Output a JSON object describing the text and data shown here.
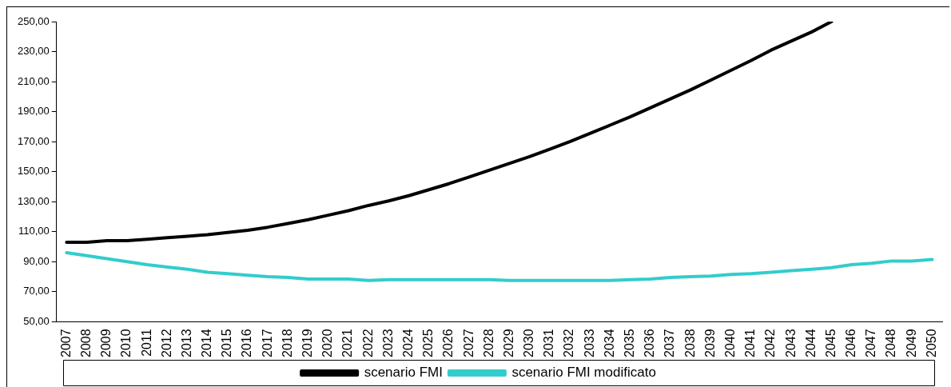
{
  "chart_data": {
    "type": "line",
    "categories": [
      "2007",
      "2008",
      "2009",
      "2010",
      "2011",
      "2012",
      "2013",
      "2014",
      "2015",
      "2016",
      "2017",
      "2018",
      "2019",
      "2020",
      "2021",
      "2022",
      "2023",
      "2024",
      "2025",
      "2026",
      "2027",
      "2028",
      "2029",
      "2030",
      "2031",
      "2032",
      "2033",
      "2034",
      "2035",
      "2036",
      "2037",
      "2038",
      "2039",
      "2040",
      "2041",
      "2042",
      "2043",
      "2044",
      "2045",
      "2046",
      "2047",
      "2048",
      "2049",
      "2050"
    ],
    "series": [
      {
        "name": "scenario FMI",
        "color": "#000000",
        "values": [
          103,
          103,
          104,
          104,
          105,
          106,
          107,
          108,
          109.5,
          111,
          113,
          115.5,
          118,
          121,
          124,
          127.5,
          130.5,
          134,
          138,
          142,
          146.5,
          151,
          155.5,
          160,
          165,
          170,
          175.5,
          181,
          186.5,
          192.5,
          198.5,
          204.5,
          211,
          217.5,
          224,
          231,
          237,
          243,
          250,
          null,
          null,
          null,
          null,
          null
        ]
      },
      {
        "name": "scenario FMI modificato",
        "color": "#33cccc",
        "values": [
          96,
          94,
          92,
          90,
          88,
          86.5,
          85,
          83,
          82,
          81,
          80,
          79.5,
          78.5,
          78.5,
          78.5,
          77.5,
          78,
          78,
          78,
          78,
          78,
          78,
          77.5,
          77.5,
          77.5,
          77.5,
          77.5,
          77.5,
          78,
          78.5,
          79.5,
          80,
          80.5,
          81.5,
          82,
          83,
          84,
          85,
          86,
          88,
          89,
          90.5,
          90.5,
          91.5
        ]
      }
    ],
    "ylim": [
      50,
      250
    ],
    "yticks": [
      {
        "value": 50,
        "label": "50,00"
      },
      {
        "value": 70,
        "label": "70,00"
      },
      {
        "value": 90,
        "label": "90,00"
      },
      {
        "value": 110,
        "label": "110,00"
      },
      {
        "value": 130,
        "label": "130,00"
      },
      {
        "value": 150,
        "label": "150,00"
      },
      {
        "value": 170,
        "label": "170,00"
      },
      {
        "value": 190,
        "label": "190,00"
      },
      {
        "value": 210,
        "label": "210,00"
      },
      {
        "value": 230,
        "label": "230,00"
      },
      {
        "value": 250,
        "label": "250,00"
      }
    ],
    "grid": false,
    "legend": "bottom",
    "marker": "none",
    "line_style": "solid"
  }
}
